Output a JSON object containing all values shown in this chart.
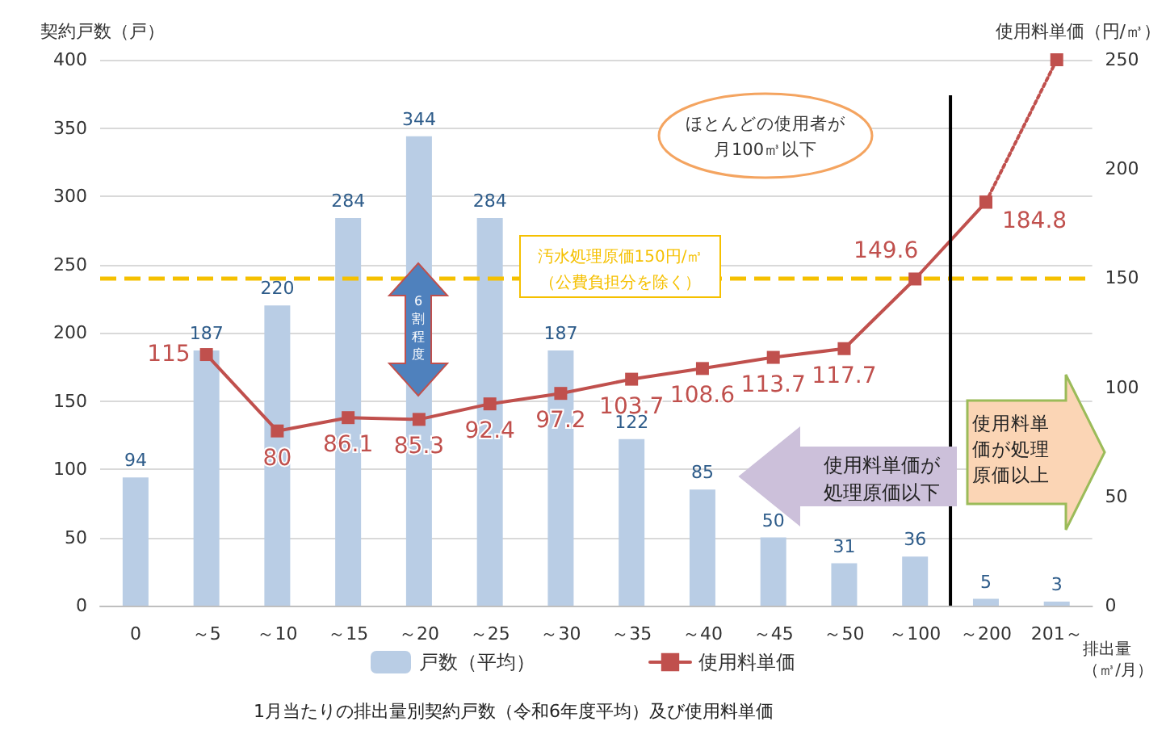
{
  "chart_data": {
    "type": "bar",
    "categories": [
      "0",
      "～5",
      "～10",
      "～15",
      "～20",
      "～25",
      "～30",
      "～35",
      "～40",
      "～45",
      "～50",
      "～100",
      "～200",
      "201～"
    ],
    "xlabel": "排出量（㎥/月）",
    "ylabel": "契約戸数（戸）",
    "y2label": "使用料単価（円/㎥）",
    "series": [
      {
        "name": "戸数（平均）",
        "color": "#b9cde5",
        "values": [
          94,
          187,
          220,
          284,
          344,
          284,
          187,
          122,
          85,
          50,
          31,
          36,
          5,
          3
        ],
        "value_labels": [
          "94",
          "187",
          "220",
          "284",
          "344",
          "284",
          "187",
          "122",
          "85",
          "50",
          "31",
          "36",
          "5",
          "3"
        ]
      },
      {
        "name": "使用料単価",
        "type": "line",
        "axis": "y2",
        "color": "#c0504d",
        "marker": "square",
        "line_style": "solid",
        "values": [
          null,
          115,
          80,
          86.1,
          85.3,
          92.4,
          97.2,
          103.7,
          108.6,
          113.7,
          117.7,
          149.6,
          184.8,
          null
        ],
        "value_labels": [
          null,
          "115",
          "80",
          "86.1",
          "85.3",
          "92.4",
          "97.2",
          "103.7",
          "108.6",
          "113.7",
          "117.7",
          "149.6",
          "184.8",
          null
        ]
      },
      {
        "type": "line",
        "axis": "y2",
        "color": "#c0504d",
        "marker": "square",
        "line_style": "dotted",
        "values": [
          null,
          null,
          null,
          null,
          null,
          null,
          null,
          null,
          null,
          null,
          null,
          null,
          184.8,
          250
        ]
      }
    ],
    "ylim": [
      0,
      400
    ],
    "yticks": [
      0,
      50,
      100,
      150,
      200,
      250,
      300,
      350,
      400
    ],
    "y2lim": [
      0,
      250
    ],
    "y2ticks": [
      0,
      50,
      100,
      150,
      200,
      250
    ],
    "grid": "y",
    "legend": "bottom",
    "ref_lines": [
      {
        "axis": "y2",
        "value": 150,
        "label": "汚水処理原価150円/㎥（公費負担分を除く）",
        "color": "#f5c000",
        "line_style": "dashed"
      },
      {
        "axis": "x",
        "value": "～200",
        "color": "#000000",
        "line_style": "solid"
      }
    ],
    "annotations": [
      "ほとんどの使用者が月100㎥以下",
      "使用料単価が処理原価以下",
      "使用料単価が処理原価以上",
      "6割程度",
      "1月当たりの排出量別契約戸数（令和6年度平均）及び使用料単価"
    ]
  }
}
